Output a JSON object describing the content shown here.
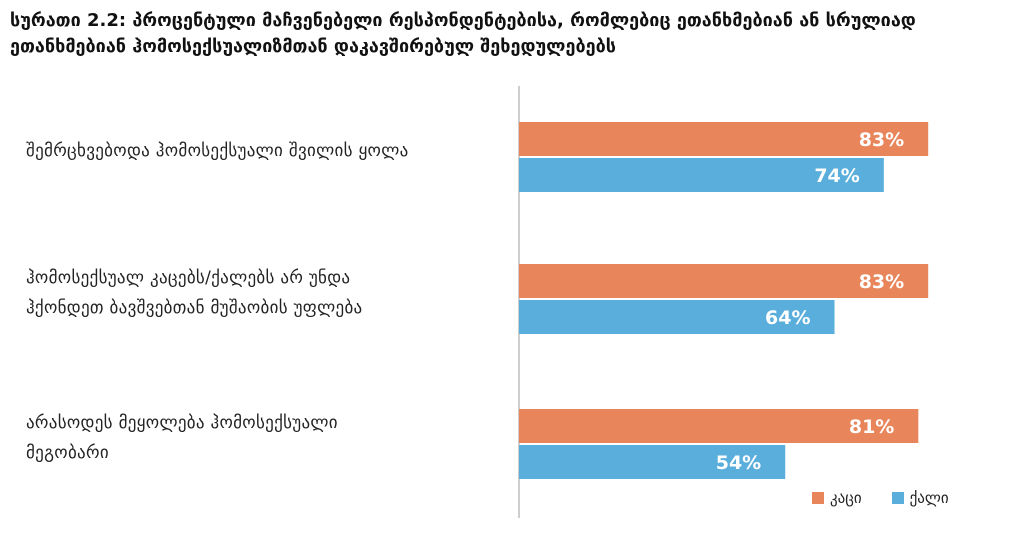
{
  "title": {
    "line1": "სურათი 2.2: პროცენტული მაჩვენებელი რესპონდენტებისა, რომლებიც ეთანხმებიან ან სრულიად",
    "line2": "ეთანხმებიან ჰომოსექსუალიზმთან დაკავშირებულ შეხედულებებს"
  },
  "colors": {
    "men": "#e8855a",
    "women": "#5aaedc"
  },
  "chart_data": {
    "type": "bar",
    "orientation": "horizontal",
    "categories": [
      "შემრცხვებოდა ჰომოსექსუალი შვილის ყოლა",
      "ჰომოსექსუალ კაცებს/ქალებს არ უნდა ჰქონდეთ ბავშვებთან მუშაობის უფლება",
      "არასოდეს მეყოლება ჰომოსექსუალი მეგობარი"
    ],
    "category_lines": [
      [
        "შემრცხვებოდა ჰომოსექსუალი შვილის ყოლა"
      ],
      [
        "ჰომოსექსუალ კაცებს/ქალებს არ უნდა",
        "ჰქონდეთ ბავშვებთან მუშაობის უფლება"
      ],
      [
        "არასოდეს მეყოლება ჰომოსექსუალი",
        "მეგობარი"
      ]
    ],
    "series": [
      {
        "name": "კაცი",
        "values": [
          83,
          83,
          81
        ],
        "labels": [
          "83%",
          "83%",
          "81%"
        ]
      },
      {
        "name": "ქალი",
        "values": [
          74,
          64,
          54
        ],
        "labels": [
          "74%",
          "64%",
          "54%"
        ]
      }
    ],
    "xlim": [
      0,
      100
    ],
    "grid": false,
    "legend_position": "bottom-right"
  }
}
